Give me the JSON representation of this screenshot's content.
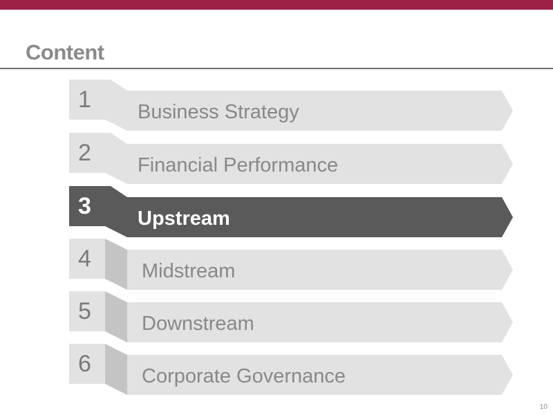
{
  "slide": {
    "title": "Content",
    "page_number": "10"
  },
  "colors": {
    "accent": "#9b2246",
    "tile_light": "#e2e2e2",
    "tile_shadow": "#c4c4c4",
    "tile_active": "#5a5a5a",
    "text_muted": "#8a8a8a"
  },
  "agenda": {
    "active_index": 2,
    "items": [
      {
        "number": "1",
        "label": "Business Strategy"
      },
      {
        "number": "2",
        "label": "Financial Performance"
      },
      {
        "number": "3",
        "label": "Upstream"
      },
      {
        "number": "4",
        "label": "Midstream"
      },
      {
        "number": "5",
        "label": "Downstream"
      },
      {
        "number": "6",
        "label": "Corporate Governance"
      }
    ]
  }
}
